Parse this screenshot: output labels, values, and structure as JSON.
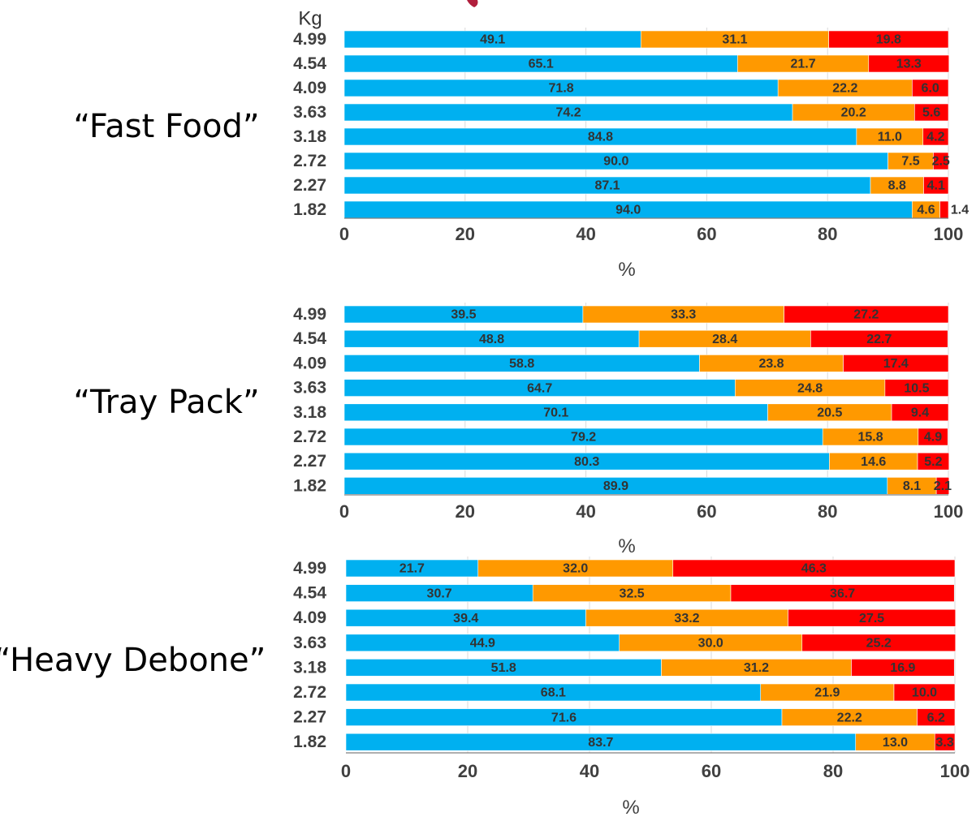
{
  "colors": {
    "series_1": "#00b0f0",
    "series_2": "#ff9900",
    "series_3": "#ff0000",
    "axis_line": "#7f7f7f",
    "grid_line": "#d9d9d9",
    "text": "#404040",
    "title_accent": "#b01e3c"
  },
  "chart_data": [
    {
      "type": "bar",
      "orientation": "horizontal",
      "stacked": true,
      "group_title": "“Fast Food”",
      "y_unit_label": "Kg",
      "categories": [
        "4.99",
        "4.54",
        "4.09",
        "3.63",
        "3.18",
        "2.72",
        "2.27",
        "1.82"
      ],
      "series": [
        {
          "values": [
            49.1,
            65.1,
            71.8,
            74.2,
            84.8,
            90.0,
            87.1,
            94.0
          ],
          "labels": [
            "49.1",
            "65.1",
            "71.8",
            "74.2",
            "84.8",
            "90.0",
            "87.1",
            "94.0"
          ]
        },
        {
          "values": [
            31.1,
            21.7,
            22.2,
            20.2,
            11.0,
            7.5,
            8.8,
            4.6
          ],
          "labels": [
            "31.1",
            "21.7",
            "22.2",
            "20.2",
            "11.0",
            "7.5",
            "8.8",
            "4.6"
          ]
        },
        {
          "values": [
            19.8,
            13.3,
            6.0,
            5.6,
            4.2,
            2.5,
            4.1,
            1.4
          ],
          "labels": [
            "19.8",
            "13.3",
            "6.0",
            "5.6",
            "4.2",
            "2.5",
            "4.1",
            "1.4"
          ]
        }
      ],
      "xlim": [
        0,
        100
      ],
      "xticks": [
        "0",
        "20",
        "40",
        "60",
        "80",
        "100"
      ],
      "xlabel": "%",
      "grid": true
    },
    {
      "type": "bar",
      "orientation": "horizontal",
      "stacked": true,
      "group_title": "“Tray Pack”",
      "categories": [
        "4.99",
        "4.54",
        "4.09",
        "3.63",
        "3.18",
        "2.72",
        "2.27",
        "1.82"
      ],
      "series": [
        {
          "values": [
            39.5,
            48.8,
            58.8,
            64.7,
            70.1,
            79.2,
            80.3,
            89.9
          ],
          "labels": [
            "39.5",
            "48.8",
            "58.8",
            "64.7",
            "70.1",
            "79.2",
            "80.3",
            "89.9"
          ]
        },
        {
          "values": [
            33.3,
            28.4,
            23.8,
            24.8,
            20.5,
            15.8,
            14.6,
            8.1
          ],
          "labels": [
            "33.3",
            "28.4",
            "23.8",
            "24.8",
            "20.5",
            "15.8",
            "14.6",
            "8.1"
          ]
        },
        {
          "values": [
            27.2,
            22.7,
            17.4,
            10.5,
            9.4,
            4.9,
            5.2,
            2.1
          ],
          "labels": [
            "27.2",
            "22.7",
            "17.4",
            "10.5",
            "9.4",
            "4.9",
            "5.2",
            "2.1"
          ]
        }
      ],
      "xlim": [
        0,
        100
      ],
      "xticks": [
        "0",
        "20",
        "40",
        "60",
        "80",
        "100"
      ],
      "xlabel": "%",
      "grid": true
    },
    {
      "type": "bar",
      "orientation": "horizontal",
      "stacked": true,
      "group_title": "“Heavy Debone”",
      "categories": [
        "4.99",
        "4.54",
        "4.09",
        "3.63",
        "3.18",
        "2.72",
        "2.27",
        "1.82"
      ],
      "series": [
        {
          "values": [
            21.7,
            30.7,
            39.4,
            44.9,
            51.8,
            68.1,
            71.6,
            83.7
          ],
          "labels": [
            "21.7",
            "30.7",
            "39.4",
            "44.9",
            "51.8",
            "68.1",
            "71.6",
            "83.7"
          ]
        },
        {
          "values": [
            32.0,
            32.5,
            33.2,
            30.0,
            31.2,
            21.9,
            22.2,
            13.0
          ],
          "labels": [
            "32.0",
            "32.5",
            "33.2",
            "30.0",
            "31.2",
            "21.9",
            "22.2",
            "13.0"
          ]
        },
        {
          "values": [
            46.3,
            36.7,
            27.5,
            25.2,
            16.9,
            10.0,
            6.2,
            3.3
          ],
          "labels": [
            "46.3",
            "36.7",
            "27.5",
            "25.2",
            "16.9",
            "10.0",
            "6.2",
            "3.3"
          ]
        }
      ],
      "xlim": [
        0,
        100
      ],
      "xticks": [
        "0",
        "20",
        "40",
        "60",
        "80",
        "100"
      ],
      "xlabel": "%",
      "grid": true
    }
  ]
}
